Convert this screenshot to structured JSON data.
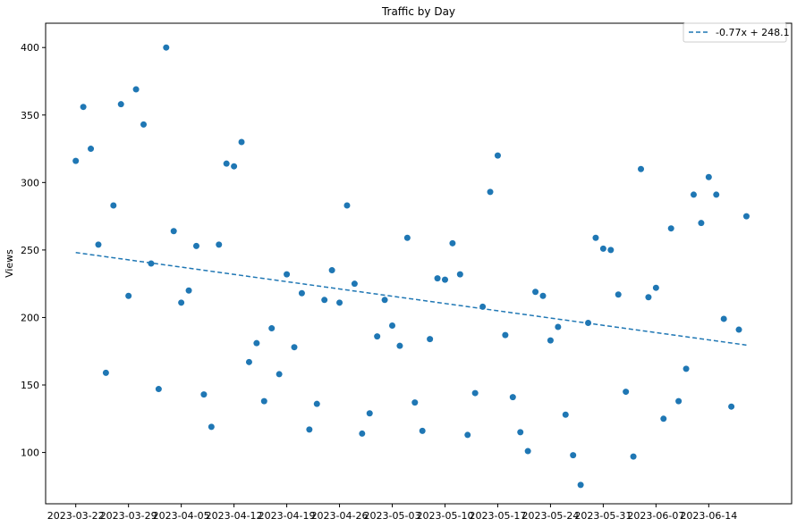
{
  "chart_data": {
    "type": "scatter",
    "title": "Traffic by Day",
    "xlabel": "",
    "ylabel": "Views",
    "x_ticks": [
      "2023-03-22",
      "2023-03-29",
      "2023-04-05",
      "2023-04-12",
      "2023-04-19",
      "2023-04-26",
      "2023-05-03",
      "2023-05-10",
      "2023-05-17",
      "2023-05-24",
      "2023-05-31",
      "2023-06-07",
      "2023-06-14"
    ],
    "y_ticks": [
      100,
      150,
      200,
      250,
      300,
      350,
      400
    ],
    "xlim": [
      "2023-03-18",
      "2023-06-25"
    ],
    "ylim": [
      62,
      418
    ],
    "grid": false,
    "legend": {
      "position": "top-right",
      "entries": [
        "-0.77x + 248.1"
      ]
    },
    "colors": {
      "points": "#1f77b4",
      "trendline": "#1f77b4"
    },
    "trendline": {
      "label": "-0.77x + 248.1",
      "slope": -0.77,
      "intercept": 248.1,
      "style": "dashed"
    },
    "series": [
      {
        "x": [
          "2023-03-22",
          "2023-03-23",
          "2023-03-24",
          "2023-03-25",
          "2023-03-26",
          "2023-03-27",
          "2023-03-28",
          "2023-03-29",
          "2023-03-30",
          "2023-03-31",
          "2023-04-01",
          "2023-04-02",
          "2023-04-03",
          "2023-04-04",
          "2023-04-05",
          "2023-04-06",
          "2023-04-07",
          "2023-04-08",
          "2023-04-09",
          "2023-04-10",
          "2023-04-11",
          "2023-04-12",
          "2023-04-13",
          "2023-04-14",
          "2023-04-15",
          "2023-04-16",
          "2023-04-17",
          "2023-04-18",
          "2023-04-19",
          "2023-04-20",
          "2023-04-21",
          "2023-04-22",
          "2023-04-23",
          "2023-04-24",
          "2023-04-25",
          "2023-04-26",
          "2023-04-27",
          "2023-04-28",
          "2023-04-29",
          "2023-04-30",
          "2023-05-01",
          "2023-05-02",
          "2023-05-03",
          "2023-05-04",
          "2023-05-05",
          "2023-05-06",
          "2023-05-07",
          "2023-05-08",
          "2023-05-09",
          "2023-05-10",
          "2023-05-11",
          "2023-05-12",
          "2023-05-13",
          "2023-05-14",
          "2023-05-15",
          "2023-05-16",
          "2023-05-17",
          "2023-05-18",
          "2023-05-19",
          "2023-05-20",
          "2023-05-21",
          "2023-05-22",
          "2023-05-23",
          "2023-05-24",
          "2023-05-25",
          "2023-05-26",
          "2023-05-27",
          "2023-05-28",
          "2023-05-29",
          "2023-05-30",
          "2023-05-31",
          "2023-06-01",
          "2023-06-02",
          "2023-06-03",
          "2023-06-04",
          "2023-06-05",
          "2023-06-06",
          "2023-06-07",
          "2023-06-08",
          "2023-06-09",
          "2023-06-10",
          "2023-06-11",
          "2023-06-12",
          "2023-06-13",
          "2023-06-14",
          "2023-06-15",
          "2023-06-16",
          "2023-06-17",
          "2023-06-18",
          "2023-06-19"
        ],
        "y": [
          316,
          356,
          325,
          254,
          159,
          283,
          358,
          216,
          369,
          343,
          240,
          147,
          400,
          264,
          211,
          220,
          253,
          143,
          119,
          254,
          314,
          312,
          330,
          167,
          181,
          138,
          192,
          158,
          232,
          178,
          218,
          117,
          136,
          213,
          235,
          211,
          283,
          225,
          114,
          129,
          186,
          213,
          194,
          179,
          259,
          137,
          116,
          184,
          229,
          228,
          255,
          232,
          113,
          144,
          208,
          293,
          320,
          187,
          141,
          115,
          101,
          219,
          216,
          183,
          193,
          128,
          98,
          76,
          196,
          259,
          251,
          250,
          217,
          145,
          97,
          310,
          215,
          222,
          125,
          266,
          138,
          162,
          291,
          270,
          304,
          291,
          199,
          134,
          191,
          275
        ]
      }
    ]
  }
}
